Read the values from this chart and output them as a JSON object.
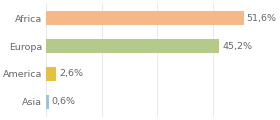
{
  "categories": [
    "Africa",
    "Europa",
    "America",
    "Asia"
  ],
  "values": [
    51.6,
    45.2,
    2.6,
    0.6
  ],
  "labels": [
    "51,6%",
    "45,2%",
    "2,6%",
    "0,6%"
  ],
  "bar_colors": [
    "#f5b888",
    "#b5c98a",
    "#e8c040",
    "#a8bfd8"
  ],
  "xlim": [
    0,
    58
  ],
  "background_color": "#ffffff",
  "text_color": "#666666",
  "bar_height": 0.52,
  "label_fontsize": 6.8,
  "ytick_fontsize": 6.8,
  "figsize": [
    2.8,
    1.2
  ],
  "dpi": 100
}
